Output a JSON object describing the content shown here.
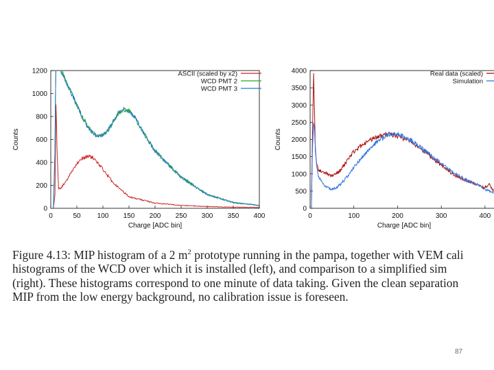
{
  "chart_data": [
    {
      "type": "line",
      "xlabel": "Charge [ADC bin]",
      "ylabel": "Counts",
      "xlim": [
        0,
        400
      ],
      "ylim": [
        0,
        1200
      ],
      "xticks": [
        "0",
        "50",
        "100",
        "150",
        "200",
        "250",
        "300",
        "350",
        "400"
      ],
      "yticks": [
        "0",
        "200",
        "400",
        "600",
        "800",
        "1000",
        "1200"
      ],
      "legend": "top-right",
      "grid": false,
      "series": [
        {
          "name": "ASCII (scaled by x2)",
          "color": "#cc2222",
          "x": [
            0,
            5,
            8,
            10,
            12,
            15,
            20,
            30,
            40,
            50,
            60,
            70,
            80,
            90,
            100,
            120,
            150,
            200,
            250,
            300,
            350,
            400
          ],
          "y": [
            0,
            0,
            120,
            900,
            520,
            170,
            180,
            240,
            320,
            390,
            430,
            450,
            445,
            400,
            340,
            220,
            100,
            45,
            25,
            15,
            10,
            8
          ]
        },
        {
          "name": "WCD PMT 2",
          "color": "#22aa22",
          "x": [
            0,
            5,
            8,
            10,
            15,
            20,
            30,
            40,
            50,
            60,
            70,
            80,
            90,
            100,
            110,
            120,
            130,
            140,
            150,
            160,
            180,
            200,
            250,
            300,
            350,
            400
          ],
          "y": [
            0,
            0,
            500,
            1400,
            1300,
            1200,
            1100,
            1000,
            900,
            800,
            720,
            660,
            630,
            640,
            680,
            760,
            830,
            860,
            850,
            800,
            640,
            500,
            270,
            120,
            50,
            25
          ]
        },
        {
          "name": "WCD PMT 3",
          "color": "#2277cc",
          "x": [
            0,
            5,
            8,
            10,
            15,
            20,
            30,
            40,
            50,
            60,
            70,
            80,
            90,
            100,
            110,
            120,
            130,
            140,
            150,
            160,
            180,
            200,
            250,
            300,
            350,
            400
          ],
          "y": [
            0,
            0,
            500,
            1400,
            1300,
            1200,
            1100,
            1000,
            900,
            800,
            720,
            660,
            630,
            640,
            680,
            760,
            830,
            860,
            850,
            800,
            640,
            500,
            270,
            120,
            50,
            25
          ]
        }
      ]
    },
    {
      "type": "line",
      "xlabel": "Charge [ADC bin]",
      "ylabel": "Counts",
      "xlim": [
        0,
        430
      ],
      "ylim": [
        0,
        4000
      ],
      "xticks": [
        "0",
        "100",
        "200",
        "300",
        "400"
      ],
      "yticks": [
        "0",
        "500",
        "1000",
        "1500",
        "2000",
        "2500",
        "3000",
        "3500",
        "4000"
      ],
      "legend": "top-right",
      "grid": false,
      "series": [
        {
          "name": "Real data (scaled)",
          "color": "#aa1111",
          "x": [
            0,
            3,
            5,
            8,
            10,
            12,
            15,
            20,
            30,
            40,
            50,
            60,
            70,
            80,
            90,
            100,
            120,
            140,
            160,
            180,
            200,
            220,
            240,
            260,
            280,
            300,
            320,
            340,
            360,
            380,
            400,
            410,
            420,
            430
          ],
          "y": [
            0,
            0,
            1800,
            4000,
            2800,
            1700,
            1300,
            1100,
            1050,
            1000,
            950,
            1000,
            1100,
            1300,
            1500,
            1650,
            1850,
            2000,
            2100,
            2150,
            2100,
            2000,
            1850,
            1650,
            1450,
            1250,
            1050,
            900,
            800,
            700,
            600,
            700,
            500,
            400
          ]
        },
        {
          "name": "Simulation",
          "color": "#3377dd",
          "x": [
            0,
            3,
            5,
            8,
            10,
            12,
            15,
            20,
            30,
            40,
            50,
            60,
            70,
            80,
            90,
            100,
            120,
            140,
            160,
            180,
            200,
            220,
            240,
            260,
            280,
            300,
            320,
            340,
            360,
            380,
            400,
            420,
            430
          ],
          "y": [
            0,
            0,
            1500,
            2500,
            2300,
            1800,
            1200,
            900,
            700,
            600,
            550,
            600,
            700,
            850,
            1000,
            1200,
            1500,
            1800,
            2000,
            2150,
            2150,
            2050,
            1900,
            1700,
            1500,
            1300,
            1100,
            950,
            800,
            700,
            550,
            450,
            400
          ]
        }
      ]
    }
  ],
  "caption": {
    "lines": [
      "Figure 4.13: MIP histogram of a 2 m",
      " prototype running in the pampa, together with VEM cali",
      "histograms of the WCD over which it is installed (left), and comparison to a simplified sim",
      "(right). These histograms correspond to one minute of data taking. Given the clean separation",
      "MIP from the low energy background, no calibration issue is foreseen."
    ],
    "superscript": "2"
  },
  "page_number": "87"
}
